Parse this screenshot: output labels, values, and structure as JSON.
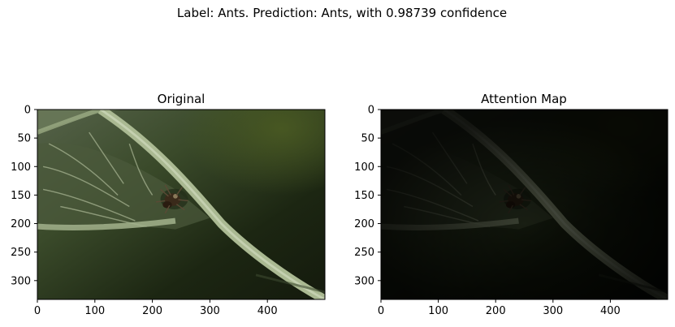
{
  "figure": {
    "suptitle": "Label: Ants. Prediction: Ants, with 0.98739 confidence"
  },
  "colors": {
    "leaf_dark": "#1d2412",
    "leaf_mid": "#2d3a1c",
    "vein": "#aab992",
    "ant_body": "#3a2a1a",
    "spine": "#000000"
  },
  "chart_data": [
    {
      "type": "image",
      "title": "Original",
      "xlim": [
        0,
        500
      ],
      "ylim": [
        333,
        0
      ],
      "xticks": [
        0,
        100,
        200,
        300,
        400
      ],
      "yticks": [
        0,
        50,
        100,
        150,
        200,
        250,
        300
      ],
      "brightness": 1.0
    },
    {
      "type": "image",
      "title": "Attention Map",
      "xlim": [
        0,
        500
      ],
      "ylim": [
        333,
        0
      ],
      "xticks": [
        0,
        100,
        200,
        300,
        400
      ],
      "yticks": [
        0,
        50,
        100,
        150,
        200,
        250,
        300
      ],
      "brightness": 0.45
    }
  ]
}
